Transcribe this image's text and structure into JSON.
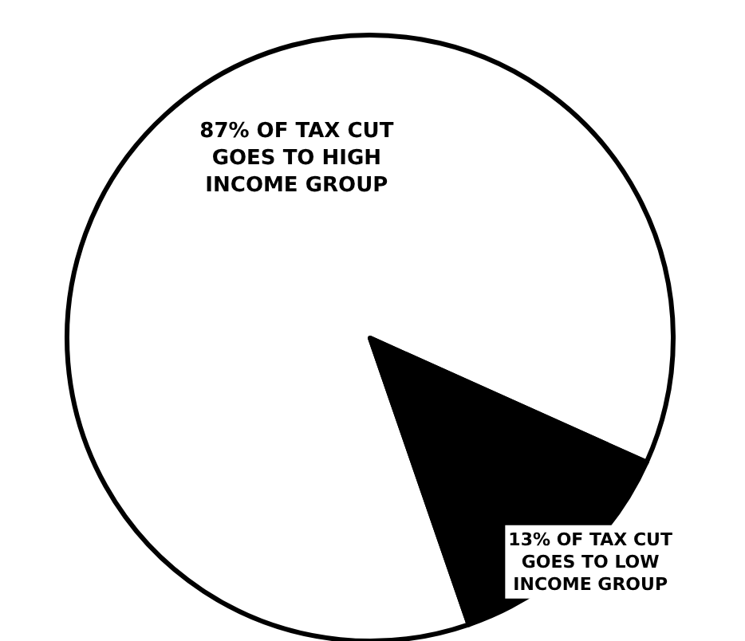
{
  "chart_data": {
    "type": "pie",
    "categories": [
      "87% OF TAX CUT\nGOES TO HIGH\nINCOME GROUP",
      "13% OF TAX CUT\nGOES TO LOW\nINCOME GROUP"
    ],
    "values": [
      87,
      13
    ],
    "colors": [
      "#ffffff",
      "#000000"
    ],
    "legend": false
  }
}
